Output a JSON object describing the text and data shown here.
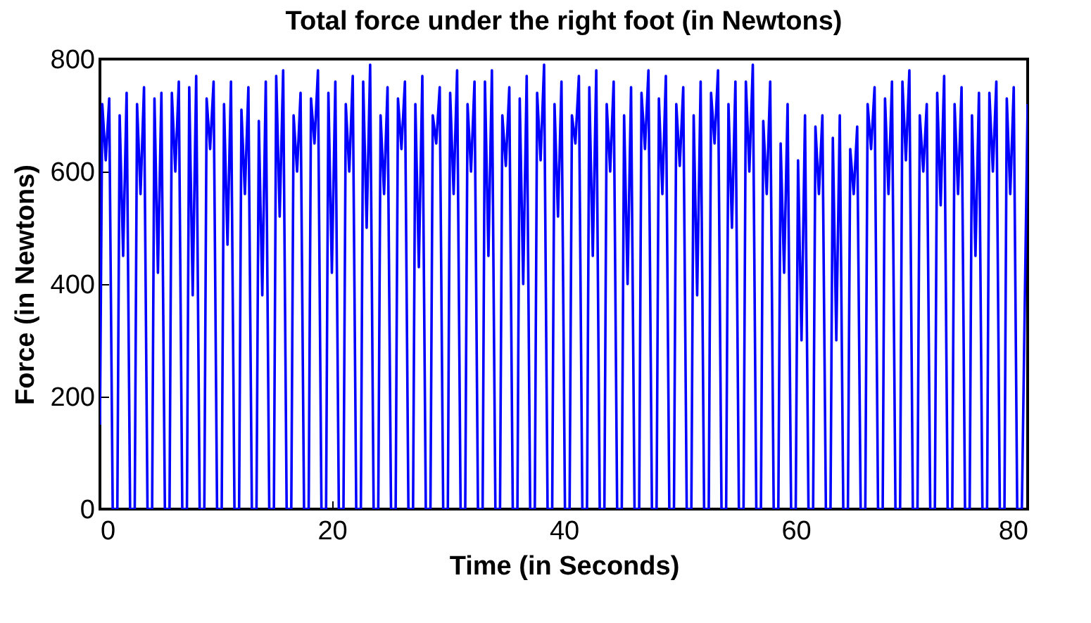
{
  "chart_data": {
    "type": "line",
    "title": "Total force under the right foot (in Newtons)",
    "xlabel": "Time (in Seconds)",
    "ylabel": "Force (in Newtons)",
    "x": [
      0,
      0.2,
      0.5,
      0.8,
      1.1,
      1.5,
      1.7,
      2,
      2.3,
      2.6,
      3,
      3.2,
      3.5,
      3.8,
      4.1,
      4.5,
      4.7,
      5,
      5.3,
      5.6,
      6,
      6.2,
      6.5,
      6.8,
      7.1,
      7.5,
      7.7,
      8,
      8.3,
      8.6,
      9,
      9.2,
      9.5,
      9.8,
      10.1,
      10.5,
      10.7,
      11,
      11.3,
      11.6,
      12,
      12.2,
      12.5,
      12.8,
      13.1,
      13.5,
      13.7,
      14,
      14.3,
      14.6,
      15,
      15.2,
      15.5,
      15.8,
      16.1,
      16.5,
      16.7,
      17,
      17.3,
      17.6,
      18,
      18.2,
      18.5,
      18.8,
      19.1,
      19.5,
      19.7,
      20,
      20.3,
      20.6,
      21,
      21.2,
      21.5,
      21.8,
      22.1,
      22.5,
      22.7,
      23,
      23.3,
      23.6,
      24,
      24.2,
      24.5,
      24.8,
      25.1,
      25.5,
      25.7,
      26,
      26.3,
      26.6,
      27,
      27.2,
      27.5,
      27.8,
      28.1,
      28.5,
      28.7,
      29,
      29.3,
      29.6,
      30,
      30.2,
      30.5,
      30.8,
      31.1,
      31.5,
      31.7,
      32,
      32.3,
      32.6,
      33,
      33.2,
      33.5,
      33.8,
      34.1,
      34.5,
      34.7,
      35,
      35.3,
      35.6,
      36,
      36.2,
      36.5,
      36.8,
      37.1,
      37.5,
      37.7,
      38,
      38.3,
      38.6,
      39,
      39.2,
      39.5,
      39.8,
      40.1,
      40.5,
      40.7,
      41,
      41.3,
      41.6,
      42,
      42.2,
      42.5,
      42.8,
      43.1,
      43.5,
      43.7,
      44,
      44.3,
      44.6,
      45,
      45.2,
      45.5,
      45.8,
      46.1,
      46.5,
      46.7,
      47,
      47.3,
      47.6,
      48,
      48.2,
      48.5,
      48.8,
      49.1,
      49.5,
      49.7,
      50,
      50.3,
      50.6,
      51,
      51.2,
      51.5,
      51.8,
      52.1,
      52.5,
      52.7,
      53,
      53.3,
      53.6,
      54,
      54.2,
      54.5,
      54.8,
      55.1,
      55.5,
      55.7,
      56,
      56.3,
      56.6,
      57,
      57.2,
      57.5,
      57.8,
      58.1,
      58.5,
      58.7,
      59,
      59.3,
      59.6,
      60,
      60.2,
      60.5,
      60.8,
      61.1,
      61.5,
      61.7,
      62,
      62.3,
      62.6,
      63,
      63.2,
      63.5,
      63.8,
      64.1,
      64.5,
      64.7,
      65,
      65.3,
      65.6,
      66,
      66.2,
      66.5,
      66.8,
      67.1,
      67.5,
      67.7,
      68,
      68.3,
      68.6,
      69,
      69.2,
      69.5,
      69.8,
      70.1,
      70.5,
      70.7,
      71,
      71.3,
      71.6,
      72,
      72.2,
      72.5,
      72.8,
      73.1,
      73.5,
      73.7,
      74,
      74.3,
      74.6,
      75,
      75.2,
      75.5,
      75.8,
      76.1,
      76.5,
      76.7,
      77,
      77.3,
      77.6,
      78,
      78.2,
      78.5,
      78.8,
      79.1,
      79.5,
      80
    ],
    "series": [
      {
        "color": "#0000ff",
        "values": [
          150,
          720,
          620,
          730,
          0,
          0,
          700,
          450,
          740,
          0,
          0,
          720,
          560,
          750,
          0,
          0,
          730,
          420,
          740,
          0,
          0,
          740,
          600,
          760,
          0,
          0,
          750,
          380,
          770,
          0,
          0,
          730,
          640,
          760,
          0,
          0,
          720,
          470,
          760,
          0,
          0,
          710,
          560,
          750,
          0,
          0,
          690,
          380,
          760,
          0,
          0,
          770,
          520,
          780,
          0,
          0,
          700,
          600,
          740,
          0,
          0,
          730,
          650,
          780,
          0,
          0,
          740,
          420,
          760,
          0,
          0,
          720,
          600,
          770,
          0,
          0,
          760,
          500,
          790,
          0,
          0,
          700,
          560,
          750,
          0,
          0,
          730,
          640,
          760,
          0,
          0,
          720,
          430,
          770,
          0,
          0,
          700,
          650,
          750,
          0,
          0,
          740,
          560,
          780,
          0,
          0,
          720,
          600,
          760,
          0,
          0,
          760,
          450,
          780,
          0,
          0,
          700,
          610,
          750,
          0,
          0,
          730,
          400,
          770,
          0,
          0,
          740,
          620,
          790,
          0,
          0,
          720,
          520,
          760,
          0,
          0,
          700,
          650,
          770,
          0,
          0,
          750,
          450,
          780,
          0,
          0,
          720,
          600,
          760,
          0,
          0,
          700,
          400,
          750,
          0,
          0,
          740,
          640,
          780,
          0,
          0,
          730,
          560,
          770,
          0,
          0,
          720,
          610,
          750,
          0,
          0,
          700,
          380,
          760,
          0,
          0,
          740,
          650,
          780,
          0,
          0,
          720,
          500,
          760,
          0,
          0,
          760,
          600,
          790,
          0,
          0,
          690,
          560,
          760,
          0,
          0,
          650,
          420,
          720,
          0,
          0,
          620,
          300,
          700,
          0,
          0,
          680,
          560,
          700,
          0,
          0,
          660,
          300,
          700,
          0,
          0,
          640,
          560,
          680,
          0,
          0,
          720,
          640,
          750,
          0,
          0,
          730,
          560,
          760,
          0,
          0,
          760,
          620,
          780,
          0,
          0,
          700,
          600,
          720,
          0,
          0,
          740,
          540,
          770,
          0,
          0,
          720,
          560,
          750,
          0,
          0,
          700,
          450,
          740,
          0,
          0,
          740,
          600,
          760,
          0,
          0,
          730,
          560,
          750,
          0,
          0,
          720
        ]
      }
    ],
    "xlim": [
      0,
      80
    ],
    "xticks": [
      0,
      20,
      40,
      60,
      80
    ],
    "ylim": [
      0,
      800
    ],
    "yticks": [
      0,
      200,
      400,
      600,
      800
    ],
    "grid": false
  }
}
